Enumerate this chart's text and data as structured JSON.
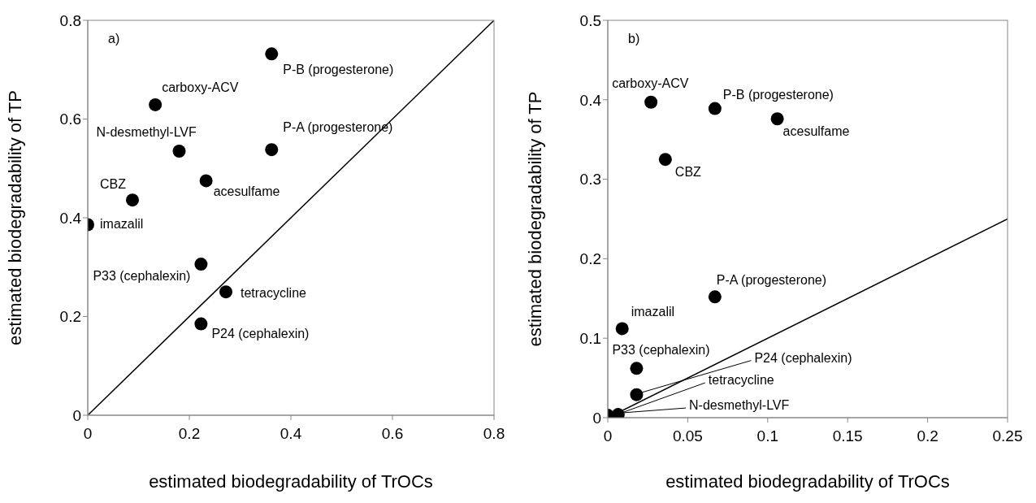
{
  "chart_data": [
    {
      "type": "scatter",
      "xlabel": "estimated biodegradability of TrOCs",
      "ylabel": "estimated biodegradability of TP",
      "xlim": [
        0,
        0.8
      ],
      "ylim": [
        0,
        0.8
      ],
      "xticks": [
        0,
        0.2,
        0.4,
        0.6,
        0.8
      ],
      "yticks": [
        0,
        0.2,
        0.4,
        0.6,
        0.8
      ],
      "grid": false,
      "legend": false,
      "marker": "circle",
      "series": [
        {
          "color": "#000000",
          "x": [
            0.362,
            0.133,
            0.18,
            0.362,
            0.233,
            0.088,
            0,
            0.223,
            0.272,
            0.223
          ],
          "values": [
            0.732,
            0.629,
            0.535,
            0.538,
            0.475,
            0.436,
            0.386,
            0.306,
            0.25,
            0.185
          ]
        },
        {
          "type": "line",
          "color": "#000000",
          "marker": "none",
          "line_style": "solid",
          "x": [
            0,
            0.8
          ],
          "values": [
            0,
            0.8
          ]
        }
      ],
      "annotations": [
        "a)",
        {
          "text": "P-B (progesterone)",
          "x": 0.362,
          "y": 0.732
        },
        {
          "text": "carboxy-ACV",
          "x": 0.133,
          "y": 0.629
        },
        {
          "text": "N-desmethyl-LVF",
          "x": 0.18,
          "y": 0.535
        },
        {
          "text": "P-A (progesterone)",
          "x": 0.362,
          "y": 0.538
        },
        {
          "text": "acesulfame",
          "x": 0.233,
          "y": 0.475
        },
        {
          "text": "CBZ",
          "x": 0.088,
          "y": 0.436
        },
        {
          "text": "imazalil",
          "x": 0,
          "y": 0.386
        },
        {
          "text": "P33 (cephalexin)",
          "x": 0.223,
          "y": 0.306
        },
        {
          "text": "tetracycline",
          "x": 0.272,
          "y": 0.25
        },
        {
          "text": "P24 (cephalexin)",
          "x": 0.223,
          "y": 0.185
        }
      ]
    },
    {
      "type": "scatter",
      "xlabel": "estimated biodegradability of TrOCs",
      "ylabel": "estimated biodegradability of TP",
      "xlim": [
        0,
        0.25
      ],
      "ylim": [
        0,
        0.5
      ],
      "xticks": [
        0,
        0.05,
        0.1,
        0.15,
        0.2,
        0.25
      ],
      "yticks": [
        0,
        0.1,
        0.2,
        0.3,
        0.4,
        0.5
      ],
      "grid": false,
      "legend": false,
      "marker": "circle",
      "series": [
        {
          "color": "#000000",
          "x": [
            0.027,
            0.067,
            0.106,
            0.036,
            0.067,
            0.009,
            0.018,
            0.018,
            0.0065,
            0
          ],
          "values": [
            0.397,
            0.389,
            0.376,
            0.325,
            0.152,
            0.112,
            0.062,
            0.029,
            0.004,
            0.003
          ]
        },
        {
          "type": "line",
          "color": "#000000",
          "marker": "none",
          "line_style": "solid",
          "x": [
            0,
            0.25
          ],
          "values": [
            0,
            0.25
          ]
        }
      ],
      "annotations": [
        "b)",
        {
          "text": "carboxy-ACV",
          "x": 0.027,
          "y": 0.397
        },
        {
          "text": "P-B (progesterone)",
          "x": 0.067,
          "y": 0.389
        },
        {
          "text": "acesulfame",
          "x": 0.106,
          "y": 0.376
        },
        {
          "text": "CBZ",
          "x": 0.036,
          "y": 0.325
        },
        {
          "text": "P-A (progesterone)",
          "x": 0.067,
          "y": 0.152
        },
        {
          "text": "imazalil",
          "x": 0.009,
          "y": 0.112
        },
        {
          "text": "P33 (cephalexin)",
          "x": 0.018,
          "y": 0.062
        },
        {
          "text": "P24 (cephalexin)",
          "x": 0.018,
          "y": 0.029
        },
        {
          "text": "tetracycline",
          "x": 0.0065,
          "y": 0.004
        },
        {
          "text": "N-desmethyl-LVF",
          "x": 0,
          "y": 0.003
        }
      ]
    }
  ]
}
